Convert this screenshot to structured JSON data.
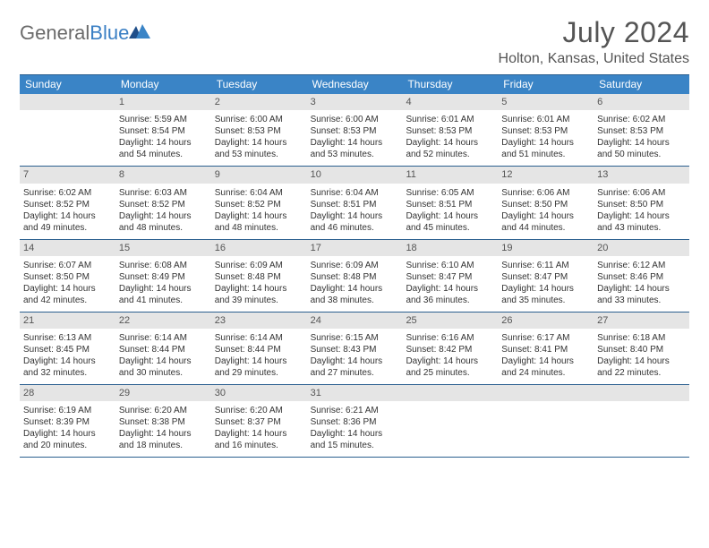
{
  "brand": {
    "part1": "General",
    "part2": "Blue"
  },
  "title": "July 2024",
  "location": "Holton, Kansas, United States",
  "colors": {
    "header_bg": "#3a84c6",
    "border": "#2b5f8f",
    "daynum_bg": "#e5e5e5",
    "text": "#333333",
    "muted": "#555555"
  },
  "day_headers": [
    "Sunday",
    "Monday",
    "Tuesday",
    "Wednesday",
    "Thursday",
    "Friday",
    "Saturday"
  ],
  "weeks": [
    [
      {
        "n": "",
        "sunrise": "",
        "sunset": "",
        "daylight": ""
      },
      {
        "n": "1",
        "sunrise": "Sunrise: 5:59 AM",
        "sunset": "Sunset: 8:54 PM",
        "daylight": "Daylight: 14 hours and 54 minutes."
      },
      {
        "n": "2",
        "sunrise": "Sunrise: 6:00 AM",
        "sunset": "Sunset: 8:53 PM",
        "daylight": "Daylight: 14 hours and 53 minutes."
      },
      {
        "n": "3",
        "sunrise": "Sunrise: 6:00 AM",
        "sunset": "Sunset: 8:53 PM",
        "daylight": "Daylight: 14 hours and 53 minutes."
      },
      {
        "n": "4",
        "sunrise": "Sunrise: 6:01 AM",
        "sunset": "Sunset: 8:53 PM",
        "daylight": "Daylight: 14 hours and 52 minutes."
      },
      {
        "n": "5",
        "sunrise": "Sunrise: 6:01 AM",
        "sunset": "Sunset: 8:53 PM",
        "daylight": "Daylight: 14 hours and 51 minutes."
      },
      {
        "n": "6",
        "sunrise": "Sunrise: 6:02 AM",
        "sunset": "Sunset: 8:53 PM",
        "daylight": "Daylight: 14 hours and 50 minutes."
      }
    ],
    [
      {
        "n": "7",
        "sunrise": "Sunrise: 6:02 AM",
        "sunset": "Sunset: 8:52 PM",
        "daylight": "Daylight: 14 hours and 49 minutes."
      },
      {
        "n": "8",
        "sunrise": "Sunrise: 6:03 AM",
        "sunset": "Sunset: 8:52 PM",
        "daylight": "Daylight: 14 hours and 48 minutes."
      },
      {
        "n": "9",
        "sunrise": "Sunrise: 6:04 AM",
        "sunset": "Sunset: 8:52 PM",
        "daylight": "Daylight: 14 hours and 48 minutes."
      },
      {
        "n": "10",
        "sunrise": "Sunrise: 6:04 AM",
        "sunset": "Sunset: 8:51 PM",
        "daylight": "Daylight: 14 hours and 46 minutes."
      },
      {
        "n": "11",
        "sunrise": "Sunrise: 6:05 AM",
        "sunset": "Sunset: 8:51 PM",
        "daylight": "Daylight: 14 hours and 45 minutes."
      },
      {
        "n": "12",
        "sunrise": "Sunrise: 6:06 AM",
        "sunset": "Sunset: 8:50 PM",
        "daylight": "Daylight: 14 hours and 44 minutes."
      },
      {
        "n": "13",
        "sunrise": "Sunrise: 6:06 AM",
        "sunset": "Sunset: 8:50 PM",
        "daylight": "Daylight: 14 hours and 43 minutes."
      }
    ],
    [
      {
        "n": "14",
        "sunrise": "Sunrise: 6:07 AM",
        "sunset": "Sunset: 8:50 PM",
        "daylight": "Daylight: 14 hours and 42 minutes."
      },
      {
        "n": "15",
        "sunrise": "Sunrise: 6:08 AM",
        "sunset": "Sunset: 8:49 PM",
        "daylight": "Daylight: 14 hours and 41 minutes."
      },
      {
        "n": "16",
        "sunrise": "Sunrise: 6:09 AM",
        "sunset": "Sunset: 8:48 PM",
        "daylight": "Daylight: 14 hours and 39 minutes."
      },
      {
        "n": "17",
        "sunrise": "Sunrise: 6:09 AM",
        "sunset": "Sunset: 8:48 PM",
        "daylight": "Daylight: 14 hours and 38 minutes."
      },
      {
        "n": "18",
        "sunrise": "Sunrise: 6:10 AM",
        "sunset": "Sunset: 8:47 PM",
        "daylight": "Daylight: 14 hours and 36 minutes."
      },
      {
        "n": "19",
        "sunrise": "Sunrise: 6:11 AM",
        "sunset": "Sunset: 8:47 PM",
        "daylight": "Daylight: 14 hours and 35 minutes."
      },
      {
        "n": "20",
        "sunrise": "Sunrise: 6:12 AM",
        "sunset": "Sunset: 8:46 PM",
        "daylight": "Daylight: 14 hours and 33 minutes."
      }
    ],
    [
      {
        "n": "21",
        "sunrise": "Sunrise: 6:13 AM",
        "sunset": "Sunset: 8:45 PM",
        "daylight": "Daylight: 14 hours and 32 minutes."
      },
      {
        "n": "22",
        "sunrise": "Sunrise: 6:14 AM",
        "sunset": "Sunset: 8:44 PM",
        "daylight": "Daylight: 14 hours and 30 minutes."
      },
      {
        "n": "23",
        "sunrise": "Sunrise: 6:14 AM",
        "sunset": "Sunset: 8:44 PM",
        "daylight": "Daylight: 14 hours and 29 minutes."
      },
      {
        "n": "24",
        "sunrise": "Sunrise: 6:15 AM",
        "sunset": "Sunset: 8:43 PM",
        "daylight": "Daylight: 14 hours and 27 minutes."
      },
      {
        "n": "25",
        "sunrise": "Sunrise: 6:16 AM",
        "sunset": "Sunset: 8:42 PM",
        "daylight": "Daylight: 14 hours and 25 minutes."
      },
      {
        "n": "26",
        "sunrise": "Sunrise: 6:17 AM",
        "sunset": "Sunset: 8:41 PM",
        "daylight": "Daylight: 14 hours and 24 minutes."
      },
      {
        "n": "27",
        "sunrise": "Sunrise: 6:18 AM",
        "sunset": "Sunset: 8:40 PM",
        "daylight": "Daylight: 14 hours and 22 minutes."
      }
    ],
    [
      {
        "n": "28",
        "sunrise": "Sunrise: 6:19 AM",
        "sunset": "Sunset: 8:39 PM",
        "daylight": "Daylight: 14 hours and 20 minutes."
      },
      {
        "n": "29",
        "sunrise": "Sunrise: 6:20 AM",
        "sunset": "Sunset: 8:38 PM",
        "daylight": "Daylight: 14 hours and 18 minutes."
      },
      {
        "n": "30",
        "sunrise": "Sunrise: 6:20 AM",
        "sunset": "Sunset: 8:37 PM",
        "daylight": "Daylight: 14 hours and 16 minutes."
      },
      {
        "n": "31",
        "sunrise": "Sunrise: 6:21 AM",
        "sunset": "Sunset: 8:36 PM",
        "daylight": "Daylight: 14 hours and 15 minutes."
      },
      {
        "n": "",
        "sunrise": "",
        "sunset": "",
        "daylight": ""
      },
      {
        "n": "",
        "sunrise": "",
        "sunset": "",
        "daylight": ""
      },
      {
        "n": "",
        "sunrise": "",
        "sunset": "",
        "daylight": ""
      }
    ]
  ]
}
